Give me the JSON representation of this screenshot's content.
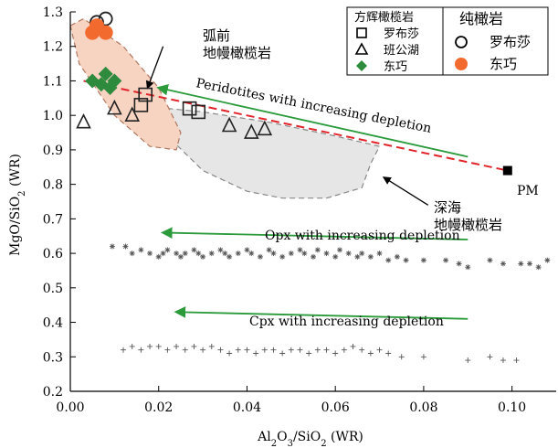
{
  "chart_data": {
    "type": "scatter",
    "xlabel_main": "Al",
    "xlabel_sub1": "2",
    "xlabel_mid1": "O",
    "xlabel_sub2": "3",
    "xlabel_tail": "/SiO",
    "xlabel_sub3": "2",
    "xlabel_end": " (WR)",
    "ylabel_main": "MgO/SiO",
    "ylabel_sub": "2",
    "ylabel_end": " (WR)",
    "xlim": [
      0.0,
      0.11
    ],
    "ylim": [
      0.2,
      1.3
    ],
    "xticks": [
      "0.00",
      "0.02",
      "0.04",
      "0.06",
      "0.08",
      "0.10"
    ],
    "yticks": [
      "0.2",
      "0.3",
      "0.4",
      "0.5",
      "0.6",
      "0.7",
      "0.8",
      "0.9",
      "1.0",
      "1.1",
      "1.2",
      "1.3"
    ],
    "legend": {
      "group1_title": "方辉橄榄岩",
      "group1_items": [
        "罗布莎",
        "班公湖",
        "东巧"
      ],
      "group2_title": "纯橄岩",
      "group2_items": [
        "罗布莎",
        "东巧"
      ]
    },
    "annotations": {
      "forearc": [
        "弧前",
        "地幔橄榄岩"
      ],
      "abyssal": [
        "深海",
        "地幔橄榄岩"
      ],
      "pm": "PM",
      "peridotite_arrow": "Peridotites with increasing depletion",
      "opx_arrow": "Opx with increasing depletion",
      "cpx_arrow": "Cpx with increasing depletion"
    },
    "colors": {
      "dongqiao": "#2e8b3e",
      "dunite_dongqiao": "#f26a2e",
      "forearc_fill": "#f7d3c2",
      "abyssal_fill": "#e6e6e6",
      "trend_line": "#e0242a",
      "arrow": "#2a9a3a",
      "opx_cpx": "#555555"
    },
    "series": [
      {
        "name": "方辉橄榄岩 罗布莎",
        "marker": "square-open",
        "points": [
          [
            0.016,
            1.03
          ],
          [
            0.017,
            1.06
          ],
          [
            0.027,
            1.02
          ],
          [
            0.029,
            1.01
          ]
        ]
      },
      {
        "name": "方辉橄榄岩 班公湖",
        "marker": "triangle-open",
        "points": [
          [
            0.003,
            0.98
          ],
          [
            0.01,
            1.02
          ],
          [
            0.014,
            1.0
          ],
          [
            0.036,
            0.97
          ],
          [
            0.041,
            0.95
          ],
          [
            0.044,
            0.96
          ]
        ]
      },
      {
        "name": "方辉橄榄岩 东巧",
        "marker": "diamond-filled",
        "points": [
          [
            0.005,
            1.1
          ],
          [
            0.007,
            1.09
          ],
          [
            0.008,
            1.12
          ],
          [
            0.009,
            1.08
          ],
          [
            0.01,
            1.1
          ]
        ]
      },
      {
        "name": "纯橄岩 罗布莎",
        "marker": "circle-open",
        "points": [
          [
            0.006,
            1.27
          ],
          [
            0.008,
            1.28
          ]
        ]
      },
      {
        "name": "纯橄岩 东巧",
        "marker": "circle-filled",
        "points": [
          [
            0.005,
            1.24
          ],
          [
            0.006,
            1.26
          ],
          [
            0.008,
            1.24
          ]
        ]
      },
      {
        "name": "PM",
        "marker": "square-filled",
        "points": [
          [
            0.099,
            0.84
          ]
        ]
      }
    ],
    "trend_line": [
      [
        0.003,
        1.1
      ],
      [
        0.099,
        0.84
      ]
    ],
    "forearc_field": [
      [
        0.0,
        1.26
      ],
      [
        0.003,
        1.28
      ],
      [
        0.012,
        1.2
      ],
      [
        0.02,
        1.08
      ],
      [
        0.025,
        0.95
      ],
      [
        0.024,
        0.9
      ],
      [
        0.018,
        0.91
      ],
      [
        0.01,
        1.0
      ],
      [
        0.002,
        1.15
      ]
    ],
    "abyssal_field": [
      [
        0.022,
        1.02
      ],
      [
        0.03,
        1.01
      ],
      [
        0.045,
        0.98
      ],
      [
        0.06,
        0.94
      ],
      [
        0.07,
        0.91
      ],
      [
        0.068,
        0.86
      ],
      [
        0.066,
        0.79
      ],
      [
        0.058,
        0.76
      ],
      [
        0.048,
        0.76
      ],
      [
        0.04,
        0.78
      ],
      [
        0.03,
        0.84
      ],
      [
        0.022,
        0.94
      ]
    ],
    "peridotite_arrow": [
      [
        0.09,
        0.88
      ],
      [
        0.02,
        1.08
      ]
    ],
    "opx_arrow": [
      [
        0.09,
        0.64
      ],
      [
        0.021,
        0.66
      ]
    ],
    "cpx_arrow": [
      [
        0.09,
        0.41
      ],
      [
        0.024,
        0.43
      ]
    ],
    "opx_points": [
      [
        0.0095,
        0.62
      ],
      [
        0.0125,
        0.62
      ],
      [
        0.014,
        0.6
      ],
      [
        0.016,
        0.61
      ],
      [
        0.018,
        0.6
      ],
      [
        0.02,
        0.59
      ],
      [
        0.021,
        0.6
      ],
      [
        0.022,
        0.61
      ],
      [
        0.024,
        0.6
      ],
      [
        0.025,
        0.59
      ],
      [
        0.026,
        0.6
      ],
      [
        0.028,
        0.61
      ],
      [
        0.029,
        0.6
      ],
      [
        0.03,
        0.59
      ],
      [
        0.032,
        0.6
      ],
      [
        0.034,
        0.61
      ],
      [
        0.035,
        0.6
      ],
      [
        0.036,
        0.59
      ],
      [
        0.038,
        0.6
      ],
      [
        0.04,
        0.61
      ],
      [
        0.041,
        0.6
      ],
      [
        0.043,
        0.59
      ],
      [
        0.045,
        0.61
      ],
      [
        0.046,
        0.6
      ],
      [
        0.048,
        0.59
      ],
      [
        0.05,
        0.6
      ],
      [
        0.052,
        0.61
      ],
      [
        0.053,
        0.6
      ],
      [
        0.055,
        0.59
      ],
      [
        0.056,
        0.61
      ],
      [
        0.058,
        0.6
      ],
      [
        0.06,
        0.59
      ],
      [
        0.061,
        0.61
      ],
      [
        0.063,
        0.6
      ],
      [
        0.065,
        0.59
      ],
      [
        0.066,
        0.6
      ],
      [
        0.068,
        0.59
      ],
      [
        0.07,
        0.6
      ],
      [
        0.072,
        0.58
      ],
      [
        0.074,
        0.59
      ],
      [
        0.076,
        0.58
      ],
      [
        0.08,
        0.58
      ],
      [
        0.085,
        0.58
      ],
      [
        0.088,
        0.57
      ],
      [
        0.09,
        0.56
      ],
      [
        0.095,
        0.58
      ],
      [
        0.098,
        0.57
      ],
      [
        0.102,
        0.57
      ],
      [
        0.104,
        0.57
      ],
      [
        0.106,
        0.56
      ],
      [
        0.108,
        0.58
      ]
    ],
    "cpx_points": [
      [
        0.012,
        0.32
      ],
      [
        0.014,
        0.33
      ],
      [
        0.016,
        0.32
      ],
      [
        0.018,
        0.33
      ],
      [
        0.02,
        0.33
      ],
      [
        0.022,
        0.32
      ],
      [
        0.024,
        0.33
      ],
      [
        0.026,
        0.32
      ],
      [
        0.028,
        0.33
      ],
      [
        0.03,
        0.32
      ],
      [
        0.032,
        0.33
      ],
      [
        0.034,
        0.32
      ],
      [
        0.036,
        0.31
      ],
      [
        0.038,
        0.32
      ],
      [
        0.04,
        0.32
      ],
      [
        0.042,
        0.31
      ],
      [
        0.044,
        0.32
      ],
      [
        0.046,
        0.32
      ],
      [
        0.048,
        0.31
      ],
      [
        0.05,
        0.32
      ],
      [
        0.052,
        0.32
      ],
      [
        0.054,
        0.31
      ],
      [
        0.056,
        0.32
      ],
      [
        0.058,
        0.32
      ],
      [
        0.06,
        0.31
      ],
      [
        0.062,
        0.32
      ],
      [
        0.064,
        0.33
      ],
      [
        0.066,
        0.32
      ],
      [
        0.068,
        0.31
      ],
      [
        0.07,
        0.32
      ],
      [
        0.072,
        0.31
      ],
      [
        0.075,
        0.3
      ],
      [
        0.08,
        0.3
      ],
      [
        0.09,
        0.29
      ],
      [
        0.095,
        0.3
      ],
      [
        0.098,
        0.29
      ],
      [
        0.101,
        0.29
      ]
    ]
  }
}
